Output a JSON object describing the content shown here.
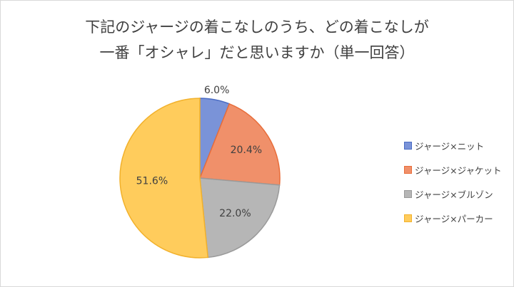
{
  "chart_data": {
    "type": "pie",
    "title_lines": [
      "下記のジャージの着こなしのうち、どの着こなしが",
      "一番「オシャレ」だと思いますか（単一回答）"
    ],
    "categories": [
      "ジャージ×ニット",
      "ジャージ×ジャケット",
      "ジャージ×ブルゾン",
      "ジャージ×パーカー"
    ],
    "values": [
      6.0,
      20.4,
      22.0,
      51.6
    ],
    "labels": [
      "6.0%",
      "20.4%",
      "22.0%",
      "51.6%"
    ],
    "colors": [
      "#7a93d8",
      "#f0906a",
      "#b6b6b6",
      "#ffcc5c"
    ],
    "edge_colors": [
      "#4a6cc4",
      "#e86d3a",
      "#9a9a9a",
      "#f2b12b"
    ],
    "legend_position": "right"
  }
}
